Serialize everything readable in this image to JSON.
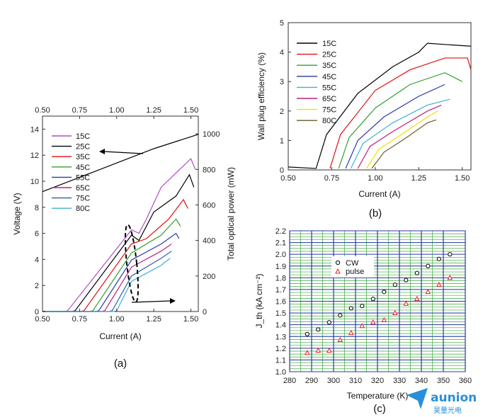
{
  "chart_data": [
    {
      "panel": "(a)",
      "type": "line",
      "xlabel": "Current (A)",
      "ylabel": "Voltage (V)",
      "y2label": "Total optical power (mW)",
      "xlim": [
        0.5,
        1.55
      ],
      "ylim": [
        0,
        15
      ],
      "y2lim": [
        0,
        1100
      ],
      "xticks": [
        "0.50",
        "0.75",
        "1.00",
        "1.25",
        "1.50"
      ],
      "yticks": [
        "0",
        "2",
        "4",
        "6",
        "8",
        "10",
        "12",
        "14"
      ],
      "y2ticks": [
        "0",
        "200",
        "400",
        "600",
        "800",
        "1000"
      ],
      "voltage": {
        "x": [
          0.5,
          0.75,
          1.0,
          1.25,
          1.55
        ],
        "y": [
          9.2,
          10.3,
          11.4,
          12.5,
          13.6
        ]
      },
      "legend": [
        "15C",
        "25C",
        "35C",
        "45C",
        "55C",
        "65C",
        "75C",
        "80C"
      ],
      "series": [
        {
          "name": "15C",
          "color": "#b04fc0",
          "x": [
            0.5,
            0.65,
            0.67,
            1.1,
            1.15,
            1.2,
            1.3,
            1.5,
            1.53
          ],
          "y": [
            0,
            0,
            5,
            460,
            440,
            520,
            700,
            860,
            800
          ]
        },
        {
          "name": "25C",
          "color": "#000000",
          "x": [
            0.5,
            0.7,
            0.72,
            1.1,
            1.15,
            1.25,
            1.4,
            1.49,
            1.52
          ],
          "y": [
            0,
            0,
            5,
            430,
            400,
            560,
            650,
            770,
            700
          ]
        },
        {
          "name": "35C",
          "color": "#e01010",
          "x": [
            0.5,
            0.76,
            0.78,
            1.1,
            1.2,
            1.35,
            1.45,
            1.48
          ],
          "y": [
            0,
            0,
            5,
            380,
            410,
            520,
            630,
            580
          ]
        },
        {
          "name": "45C",
          "color": "#2fa02f",
          "x": [
            0.5,
            0.82,
            0.84,
            1.1,
            1.3,
            1.4,
            1.43
          ],
          "y": [
            0,
            0,
            5,
            330,
            430,
            520,
            480
          ]
        },
        {
          "name": "55C",
          "color": "#2b3aa8",
          "x": [
            0.5,
            0.86,
            0.88,
            1.1,
            1.3,
            1.4,
            1.42
          ],
          "y": [
            0,
            0,
            5,
            290,
            380,
            440,
            410
          ]
        },
        {
          "name": "65C",
          "color": "#c0207a",
          "x": [
            0.5,
            0.9,
            0.92,
            1.1,
            1.3,
            1.37
          ],
          "y": [
            0,
            0,
            5,
            250,
            340,
            380
          ]
        },
        {
          "name": "75C",
          "color": "#2b5fa8",
          "x": [
            0.5,
            0.95,
            0.97,
            1.1,
            1.3,
            1.37
          ],
          "y": [
            0,
            0,
            5,
            200,
            300,
            340
          ]
        },
        {
          "name": "80C",
          "color": "#3fb0d8",
          "x": [
            0.5,
            0.98,
            1.0,
            1.1,
            1.3,
            1.36
          ],
          "y": [
            0,
            0,
            5,
            170,
            260,
            300
          ]
        }
      ]
    },
    {
      "panel": "(b)",
      "type": "line",
      "xlabel": "Current (A)",
      "ylabel": "Wall plug efficiency (%)",
      "xlim": [
        0.5,
        1.55
      ],
      "ylim": [
        0,
        5
      ],
      "xticks": [
        "0.50",
        "0.75",
        "1.00",
        "1.25",
        "1.50"
      ],
      "yticks": [
        "0",
        "1",
        "2",
        "3",
        "4",
        "5"
      ],
      "legend": [
        "15C",
        "25C",
        "35C",
        "45C",
        "55C",
        "65C",
        "75C",
        "80C"
      ],
      "series": [
        {
          "name": "15C",
          "color": "#000000",
          "x": [
            0.5,
            0.66,
            0.72,
            0.9,
            1.1,
            1.25,
            1.3,
            1.55
          ],
          "y": [
            0.1,
            0.05,
            1.2,
            2.6,
            3.5,
            4.0,
            4.3,
            4.2
          ]
        },
        {
          "name": "25C",
          "color": "#e01010",
          "x": [
            0.74,
            0.8,
            1.0,
            1.2,
            1.4,
            1.53,
            1.55
          ],
          "y": [
            0.05,
            1.2,
            2.7,
            3.4,
            3.8,
            3.8,
            3.4
          ]
        },
        {
          "name": "35C",
          "color": "#2fa02f",
          "x": [
            0.79,
            0.85,
            1.0,
            1.2,
            1.4,
            1.5
          ],
          "y": [
            0.05,
            1.1,
            2.1,
            2.9,
            3.3,
            3.0
          ]
        },
        {
          "name": "45C",
          "color": "#2b3aa8",
          "x": [
            0.83,
            0.9,
            1.05,
            1.25,
            1.4
          ],
          "y": [
            0.05,
            1.0,
            1.8,
            2.5,
            2.9
          ]
        },
        {
          "name": "55C",
          "color": "#3fb0d8",
          "x": [
            0.86,
            0.93,
            1.1,
            1.3,
            1.43
          ],
          "y": [
            0.05,
            0.9,
            1.6,
            2.2,
            2.4
          ]
        },
        {
          "name": "65C",
          "color": "#c0207a",
          "x": [
            0.9,
            0.97,
            1.1,
            1.3,
            1.38
          ],
          "y": [
            0.05,
            0.8,
            1.3,
            2.0,
            2.2
          ]
        },
        {
          "name": "75C",
          "color": "#f0e000",
          "x": [
            0.95,
            1.02,
            1.15,
            1.3,
            1.36
          ],
          "y": [
            0.05,
            0.7,
            1.2,
            1.8,
            2.0
          ]
        },
        {
          "name": "80C",
          "color": "#6b5a2a",
          "x": [
            0.98,
            1.05,
            1.18,
            1.3,
            1.35
          ],
          "y": [
            0.05,
            0.6,
            1.1,
            1.6,
            1.7
          ]
        }
      ]
    },
    {
      "panel": "(c)",
      "type": "scatter",
      "xlabel": "Temperature (K)",
      "ylabel": "J_th (kA cm⁻²)",
      "xlim": [
        280,
        360
      ],
      "ylim": [
        1.0,
        2.2
      ],
      "xticks": [
        "280",
        "290",
        "300",
        "310",
        "320",
        "330",
        "340",
        "350",
        "360"
      ],
      "yticks": [
        "1.0",
        "1.1",
        "1.2",
        "1.3",
        "1.4",
        "1.5",
        "1.6",
        "1.7",
        "1.8",
        "1.9",
        "2.0",
        "2.1",
        "2.2"
      ],
      "legend": [
        "CW",
        "pulse"
      ],
      "series": [
        {
          "name": "CW",
          "marker": "circle",
          "color": "#000000",
          "x": [
            288,
            293,
            298,
            303,
            308,
            313,
            318,
            323,
            328,
            333,
            338,
            343,
            348,
            353
          ],
          "y": [
            1.32,
            1.36,
            1.42,
            1.48,
            1.54,
            1.56,
            1.62,
            1.68,
            1.74,
            1.78,
            1.84,
            1.9,
            1.96,
            2.0
          ]
        },
        {
          "name": "pulse",
          "marker": "triangle",
          "color": "#e02020",
          "x": [
            288,
            293,
            298,
            303,
            308,
            313,
            318,
            323,
            328,
            333,
            338,
            343,
            348,
            353
          ],
          "y": [
            1.16,
            1.18,
            1.18,
            1.27,
            1.33,
            1.39,
            1.42,
            1.44,
            1.5,
            1.58,
            1.62,
            1.68,
            1.74,
            1.8
          ]
        }
      ]
    }
  ],
  "logo": {
    "brand": "aunion",
    "sub": "昊量光电"
  }
}
